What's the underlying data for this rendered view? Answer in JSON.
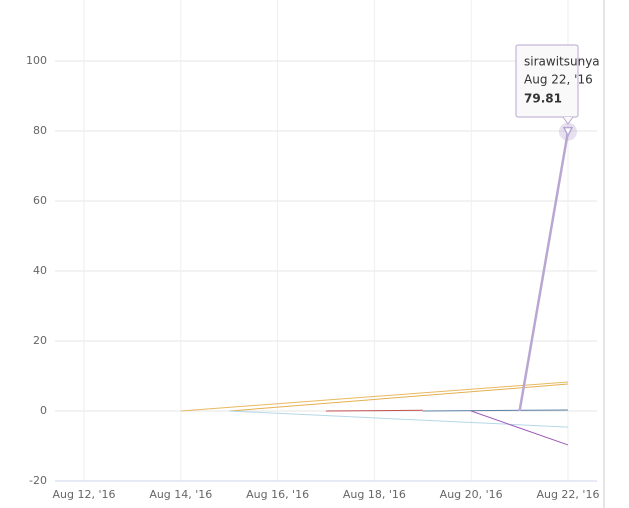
{
  "chart_data": {
    "type": "line",
    "xlim": [
      11.4,
      22.6
    ],
    "xticks": [
      {
        "value": 12,
        "label": "Aug 12, '16"
      },
      {
        "value": 14,
        "label": "Aug 14, '16"
      },
      {
        "value": 16,
        "label": "Aug 16, '16"
      },
      {
        "value": 18,
        "label": "Aug 18, '16"
      },
      {
        "value": 20,
        "label": "Aug 20, '16"
      },
      {
        "value": 22,
        "label": "Aug 22, '16"
      }
    ],
    "ylim": [
      -20,
      120
    ],
    "yticks": [
      -20,
      0,
      20,
      40,
      60,
      80,
      100
    ],
    "grid": true,
    "series": [
      {
        "color": "#e8b960",
        "x": [
          14,
          22
        ],
        "values": [
          0,
          8.3
        ]
      },
      {
        "color": "#e3b04f",
        "x": [
          15,
          22
        ],
        "values": [
          0,
          7.7
        ]
      },
      {
        "color": "#b5d8e8",
        "x": [
          15,
          22
        ],
        "values": [
          0,
          -4.6
        ]
      },
      {
        "color": "#c0504d",
        "x": [
          17,
          19
        ],
        "values": [
          0,
          0.2
        ]
      },
      {
        "color": "#5b7fa6",
        "x": [
          19,
          22
        ],
        "values": [
          0,
          0.3
        ]
      },
      {
        "color": "#9b59b6",
        "x": [
          20,
          22
        ],
        "values": [
          0,
          -9.7
        ]
      },
      {
        "name": "sirawitsunya",
        "color": "#b9a7d2",
        "x": [
          21,
          22
        ],
        "values": [
          0,
          79.81
        ],
        "width": 2.5
      }
    ],
    "tooltip": {
      "series": 6,
      "point": 1
    }
  }
}
